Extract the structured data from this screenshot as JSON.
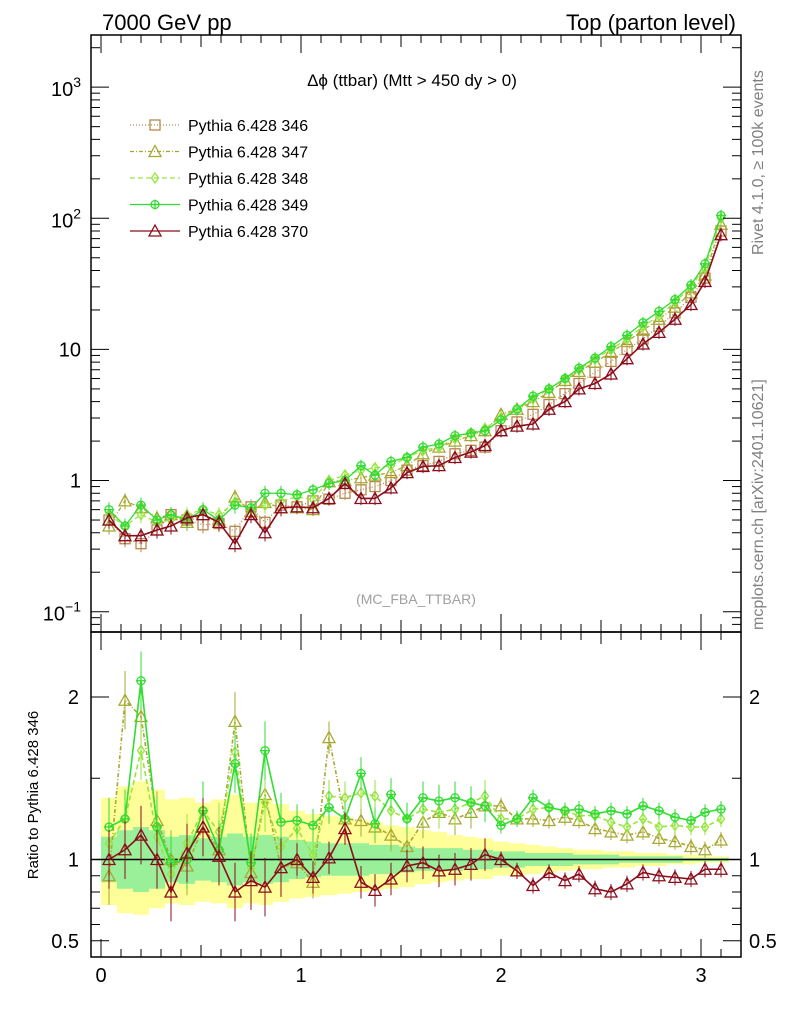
{
  "header": {
    "left": "7000 GeV pp",
    "right": "Top (parton level)"
  },
  "side_labels": {
    "rivet": "Rivet 4.1.0, ≥ 100k events",
    "mcplots": "mcplots.cern.ch [arXiv:2401.10621]"
  },
  "chart_data": [
    {
      "type": "line",
      "title": "Δϕ (ttbar) (Mtt > 450 dy > 0)",
      "watermark": "(MC_FBA_TTBAR)",
      "yscale": "log",
      "ylim": [
        0.07,
        2500
      ],
      "xlim": [
        -0.05,
        3.2
      ],
      "y_ticks": [
        {
          "value": 0.1,
          "base": "10",
          "exp": "−1"
        },
        {
          "value": 1,
          "label": "1"
        },
        {
          "value": 10,
          "label": "10"
        },
        {
          "value": 100,
          "base": "10",
          "exp": "2"
        },
        {
          "value": 1000,
          "base": "10",
          "exp": "3"
        }
      ],
      "x": [
        0.04,
        0.12,
        0.2,
        0.28,
        0.35,
        0.43,
        0.51,
        0.59,
        0.67,
        0.75,
        0.82,
        0.9,
        0.98,
        1.06,
        1.14,
        1.22,
        1.3,
        1.37,
        1.45,
        1.53,
        1.61,
        1.69,
        1.77,
        1.85,
        1.92,
        2.0,
        2.08,
        2.16,
        2.24,
        2.32,
        2.39,
        2.47,
        2.55,
        2.63,
        2.71,
        2.79,
        2.87,
        2.95,
        3.02,
        3.1
      ],
      "legend": [
        {
          "name": "Pythia 6.428 346",
          "color": "#b8864b",
          "marker": "square",
          "dash": "1,2"
        },
        {
          "name": "Pythia 6.428 347",
          "color": "#a8a830",
          "marker": "triangle",
          "dash": "4,2,1,2"
        },
        {
          "name": "Pythia 6.428 348",
          "color": "#96e63c",
          "marker": "diamond",
          "dash": "5,3"
        },
        {
          "name": "Pythia 6.428 349",
          "color": "#32dc32",
          "marker": "cross",
          "dash": ""
        },
        {
          "name": "Pythia 6.428 370",
          "color": "#8b0d1c",
          "marker": "triangle",
          "dash": ""
        }
      ],
      "series": [
        {
          "name": "Pythia 6.428 346",
          "values": [
            0.5,
            0.36,
            0.33,
            0.42,
            0.55,
            0.5,
            0.46,
            0.47,
            0.41,
            0.63,
            0.48,
            0.65,
            0.63,
            0.7,
            0.72,
            0.8,
            0.85,
            0.9,
            1.0,
            1.2,
            1.3,
            1.4,
            1.6,
            1.7,
            1.8,
            2.4,
            2.8,
            3.2,
            3.8,
            4.6,
            5.5,
            6.7,
            8.1,
            10,
            12,
            15,
            19,
            25,
            35,
            80
          ]
        },
        {
          "name": "Pythia 6.428 347",
          "values": [
            0.45,
            0.7,
            0.62,
            0.52,
            0.55,
            0.48,
            0.55,
            0.5,
            0.75,
            0.58,
            0.68,
            0.62,
            0.62,
            0.6,
            0.98,
            1.0,
            1.05,
            1.1,
            1.15,
            1.3,
            1.6,
            1.8,
            2.0,
            2.2,
            2.4,
            3.2,
            3.5,
            4.0,
            4.7,
            5.8,
            6.8,
            8.0,
            9.5,
            11.5,
            14,
            17,
            21,
            27,
            37,
            90
          ]
        },
        {
          "name": "Pythia 6.428 348",
          "values": [
            0.55,
            0.45,
            0.55,
            0.48,
            0.5,
            0.55,
            0.6,
            0.55,
            0.68,
            0.6,
            0.65,
            0.7,
            0.75,
            0.72,
            1.0,
            1.1,
            1.2,
            1.25,
            1.3,
            1.5,
            1.7,
            1.8,
            2.1,
            2.3,
            2.5,
            3.0,
            3.5,
            4.2,
            5.0,
            6.0,
            7.0,
            8.5,
            10,
            12,
            15,
            18,
            23,
            30,
            42,
            100
          ]
        },
        {
          "name": "Pythia 6.428 349",
          "values": [
            0.6,
            0.45,
            0.65,
            0.5,
            0.55,
            0.5,
            0.6,
            0.5,
            0.65,
            0.62,
            0.8,
            0.8,
            0.78,
            0.85,
            0.95,
            1.0,
            1.3,
            1.1,
            1.4,
            1.5,
            1.8,
            1.9,
            2.2,
            2.3,
            2.4,
            2.9,
            3.5,
            4.4,
            5.0,
            6.0,
            7.2,
            8.6,
            10.5,
            12.8,
            16,
            19.5,
            24,
            31,
            45,
            105
          ]
        },
        {
          "name": "Pythia 6.428 370",
          "values": [
            0.5,
            0.38,
            0.38,
            0.42,
            0.45,
            0.52,
            0.55,
            0.48,
            0.33,
            0.55,
            0.4,
            0.62,
            0.63,
            0.62,
            0.73,
            0.95,
            0.73,
            0.73,
            0.88,
            1.15,
            1.28,
            1.3,
            1.5,
            1.65,
            1.85,
            2.4,
            2.6,
            2.7,
            3.5,
            4.0,
            5.0,
            5.5,
            6.5,
            8.5,
            11,
            13.5,
            17,
            22,
            33,
            75
          ]
        }
      ]
    },
    {
      "type": "line",
      "ylabel": "Ratio to Pythia 6.428 346",
      "ylim": [
        0.4,
        2.4
      ],
      "xlim": [
        -0.05,
        3.2
      ],
      "y_ticks": [
        0.5,
        1,
        2
      ],
      "x_ticks": [
        0,
        1,
        2,
        3
      ],
      "reference_line": 1,
      "band_edges": [
        0,
        0.08,
        0.16,
        0.24,
        0.32,
        0.39,
        0.47,
        0.55,
        0.63,
        0.71,
        0.79,
        0.86,
        0.94,
        1.02,
        1.1,
        1.18,
        1.26,
        1.34,
        1.41,
        1.49,
        1.57,
        1.65,
        1.73,
        1.81,
        1.88,
        1.96,
        2.04,
        2.12,
        2.2,
        2.28,
        2.36,
        2.43,
        2.51,
        2.59,
        2.67,
        2.75,
        2.83,
        2.91,
        2.98,
        3.06,
        3.14
      ],
      "green_band": {
        "lower": [
          0.86,
          0.82,
          0.8,
          0.82,
          0.86,
          0.85,
          0.87,
          0.86,
          0.84,
          0.86,
          0.85,
          0.86,
          0.88,
          0.89,
          0.9,
          0.9,
          0.9,
          0.91,
          0.91,
          0.92,
          0.93,
          0.93,
          0.93,
          0.94,
          0.94,
          0.95,
          0.95,
          0.96,
          0.96,
          0.96,
          0.97,
          0.97,
          0.97,
          0.98,
          0.98,
          0.98,
          0.98,
          0.99,
          0.99,
          0.99
        ],
        "upper": [
          1.14,
          1.18,
          1.2,
          1.18,
          1.14,
          1.15,
          1.13,
          1.14,
          1.16,
          1.14,
          1.15,
          1.14,
          1.12,
          1.11,
          1.1,
          1.1,
          1.1,
          1.09,
          1.09,
          1.08,
          1.07,
          1.07,
          1.07,
          1.06,
          1.06,
          1.05,
          1.05,
          1.04,
          1.04,
          1.04,
          1.03,
          1.03,
          1.03,
          1.02,
          1.02,
          1.02,
          1.02,
          1.01,
          1.01,
          1.01
        ]
      },
      "yellow_band": {
        "lower": [
          0.72,
          0.67,
          0.66,
          0.7,
          0.73,
          0.72,
          0.74,
          0.73,
          0.7,
          0.73,
          0.72,
          0.74,
          0.76,
          0.77,
          0.78,
          0.79,
          0.8,
          0.81,
          0.82,
          0.83,
          0.85,
          0.86,
          0.87,
          0.88,
          0.88,
          0.9,
          0.9,
          0.91,
          0.92,
          0.93,
          0.94,
          0.94,
          0.95,
          0.95,
          0.96,
          0.96,
          0.97,
          0.97,
          0.98,
          0.98
        ],
        "upper": [
          1.38,
          1.45,
          1.48,
          1.43,
          1.37,
          1.38,
          1.35,
          1.37,
          1.4,
          1.35,
          1.37,
          1.34,
          1.3,
          1.28,
          1.27,
          1.26,
          1.24,
          1.23,
          1.21,
          1.2,
          1.18,
          1.17,
          1.15,
          1.14,
          1.13,
          1.11,
          1.1,
          1.09,
          1.08,
          1.07,
          1.06,
          1.06,
          1.05,
          1.05,
          1.04,
          1.04,
          1.03,
          1.03,
          1.02,
          1.02
        ]
      },
      "x": [
        0.04,
        0.12,
        0.2,
        0.28,
        0.35,
        0.43,
        0.51,
        0.59,
        0.67,
        0.75,
        0.82,
        0.9,
        0.98,
        1.06,
        1.14,
        1.22,
        1.3,
        1.37,
        1.45,
        1.53,
        1.61,
        1.69,
        1.77,
        1.85,
        1.92,
        2.0,
        2.08,
        2.16,
        2.24,
        2.32,
        2.39,
        2.47,
        2.55,
        2.63,
        2.71,
        2.79,
        2.87,
        2.95,
        3.02,
        3.1
      ],
      "series": [
        {
          "name": "Pythia 6.428 347",
          "values": [
            0.9,
            1.98,
            1.88,
            1.24,
            1.0,
            0.96,
            1.2,
            1.06,
            1.85,
            0.92,
            1.4,
            0.95,
            0.98,
            0.86,
            1.75,
            1.25,
            1.24,
            1.2,
            1.15,
            1.08,
            1.23,
            1.29,
            1.25,
            1.29,
            1.33,
            1.33,
            1.25,
            1.25,
            1.24,
            1.26,
            1.24,
            1.19,
            1.17,
            1.15,
            1.17,
            1.13,
            1.11,
            1.08,
            1.06,
            1.12
          ]
        },
        {
          "name": "Pythia 6.428 348",
          "values": [
            1.1,
            1.25,
            1.67,
            1.14,
            0.91,
            1.1,
            1.3,
            1.17,
            1.66,
            0.95,
            1.35,
            1.08,
            1.19,
            1.03,
            1.39,
            1.38,
            1.41,
            1.39,
            1.3,
            1.25,
            1.31,
            1.29,
            1.31,
            1.35,
            1.39,
            1.25,
            1.25,
            1.31,
            1.32,
            1.3,
            1.27,
            1.27,
            1.23,
            1.2,
            1.25,
            1.2,
            1.21,
            1.2,
            1.2,
            1.25
          ]
        },
        {
          "name": "Pythia 6.428 349",
          "values": [
            1.2,
            1.25,
            2.1,
            1.2,
            0.98,
            1.0,
            1.3,
            1.06,
            1.59,
            0.98,
            1.67,
            1.23,
            1.24,
            1.21,
            1.32,
            1.25,
            1.53,
            1.22,
            1.4,
            1.25,
            1.38,
            1.36,
            1.38,
            1.35,
            1.33,
            1.21,
            1.25,
            1.38,
            1.32,
            1.3,
            1.31,
            1.28,
            1.3,
            1.28,
            1.33,
            1.3,
            1.26,
            1.24,
            1.29,
            1.31
          ]
        },
        {
          "name": "Pythia 6.428 370",
          "values": [
            1.0,
            1.06,
            1.15,
            1.0,
            0.8,
            1.04,
            1.2,
            1.02,
            0.8,
            0.87,
            0.83,
            0.95,
            1.0,
            0.89,
            1.01,
            1.19,
            0.86,
            0.81,
            0.88,
            0.96,
            0.98,
            0.93,
            0.94,
            0.97,
            1.03,
            1.0,
            0.93,
            0.84,
            0.92,
            0.87,
            0.91,
            0.82,
            0.8,
            0.85,
            0.92,
            0.9,
            0.89,
            0.88,
            0.94,
            0.94
          ]
        }
      ]
    }
  ]
}
